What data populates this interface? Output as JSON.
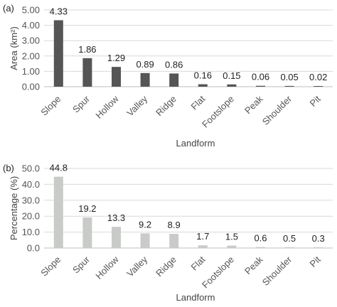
{
  "chart_data": [
    {
      "type": "bar",
      "panel_label": "(a)",
      "categories": [
        "Slope",
        "Spur",
        "Hollow",
        "Valley",
        "Ridge",
        "Flat",
        "Footslope",
        "Peak",
        "Shoulder",
        "Pit"
      ],
      "values": [
        4.33,
        1.86,
        1.29,
        0.89,
        0.86,
        0.16,
        0.15,
        0.06,
        0.05,
        0.02
      ],
      "value_labels": [
        "4.33",
        "1.86",
        "1.29",
        "0.89",
        "0.86",
        "0.16",
        "0.15",
        "0.06",
        "0.05",
        "0.02"
      ],
      "ylabel": "Area (km²)",
      "xlabel": "Landform",
      "ylim": [
        0,
        5
      ],
      "yticks": [
        "0.00",
        "1.00",
        "2.00",
        "3.00",
        "4.00",
        "5.00"
      ],
      "grid": true,
      "color": "#555555"
    },
    {
      "type": "bar",
      "panel_label": "(b)",
      "categories": [
        "Slope",
        "Spur",
        "Hollow",
        "Valley",
        "Ridge",
        "Flat",
        "Footslope",
        "Peak",
        "Shoulder",
        "Pit"
      ],
      "values": [
        44.8,
        19.2,
        13.3,
        9.2,
        8.9,
        1.7,
        1.5,
        0.6,
        0.5,
        0.3
      ],
      "value_labels": [
        "44.8",
        "19.2",
        "13.3",
        "9.2",
        "8.9",
        "1.7",
        "1.5",
        "0.6",
        "0.5",
        "0.3"
      ],
      "ylabel": "Percentage (%)",
      "xlabel": "Landform",
      "ylim": [
        0,
        50
      ],
      "yticks": [
        "0.0",
        "10.0",
        "20.0",
        "30.0",
        "40.0",
        "50.0"
      ],
      "grid": true,
      "color": "#c8cbc8"
    }
  ]
}
